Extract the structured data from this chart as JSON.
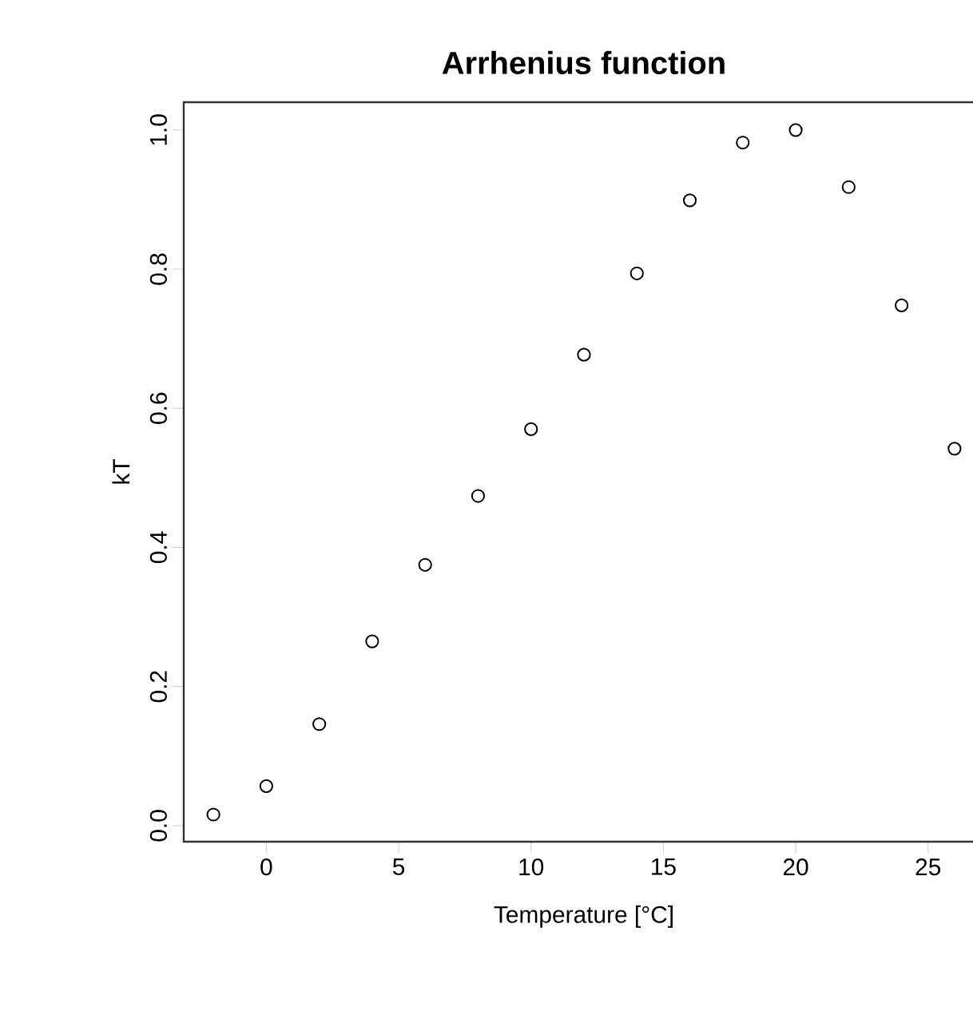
{
  "chart_data": {
    "type": "scatter",
    "title": "Arrhenius function",
    "xlabel": "Temperature [°C]",
    "ylabel": "kT",
    "x": [
      -2,
      0,
      2,
      4,
      6,
      8,
      10,
      12,
      14,
      16,
      18,
      20,
      22,
      24,
      26
    ],
    "values": [
      0.016,
      0.057,
      0.146,
      0.265,
      0.375,
      0.474,
      0.57,
      0.677,
      0.794,
      0.899,
      0.982,
      1.0,
      0.918,
      0.748,
      0.542
    ],
    "color": "#000000",
    "marker": "circle",
    "xlim": [
      -3.12,
      27.12
    ],
    "ylim": [
      -0.023,
      1.04
    ],
    "xticks": [
      0,
      5,
      10,
      15,
      20,
      25
    ],
    "yticks": [
      {
        "value": 0,
        "label": "0.0"
      },
      {
        "value": 0.2,
        "label": "0.2"
      },
      {
        "value": 0.4,
        "label": "0.4"
      },
      {
        "value": 0.6,
        "label": "0.6"
      },
      {
        "value": 0.8,
        "label": "0.8"
      },
      {
        "value": 1.0,
        "label": "1.0"
      }
    ],
    "grid": false
  }
}
